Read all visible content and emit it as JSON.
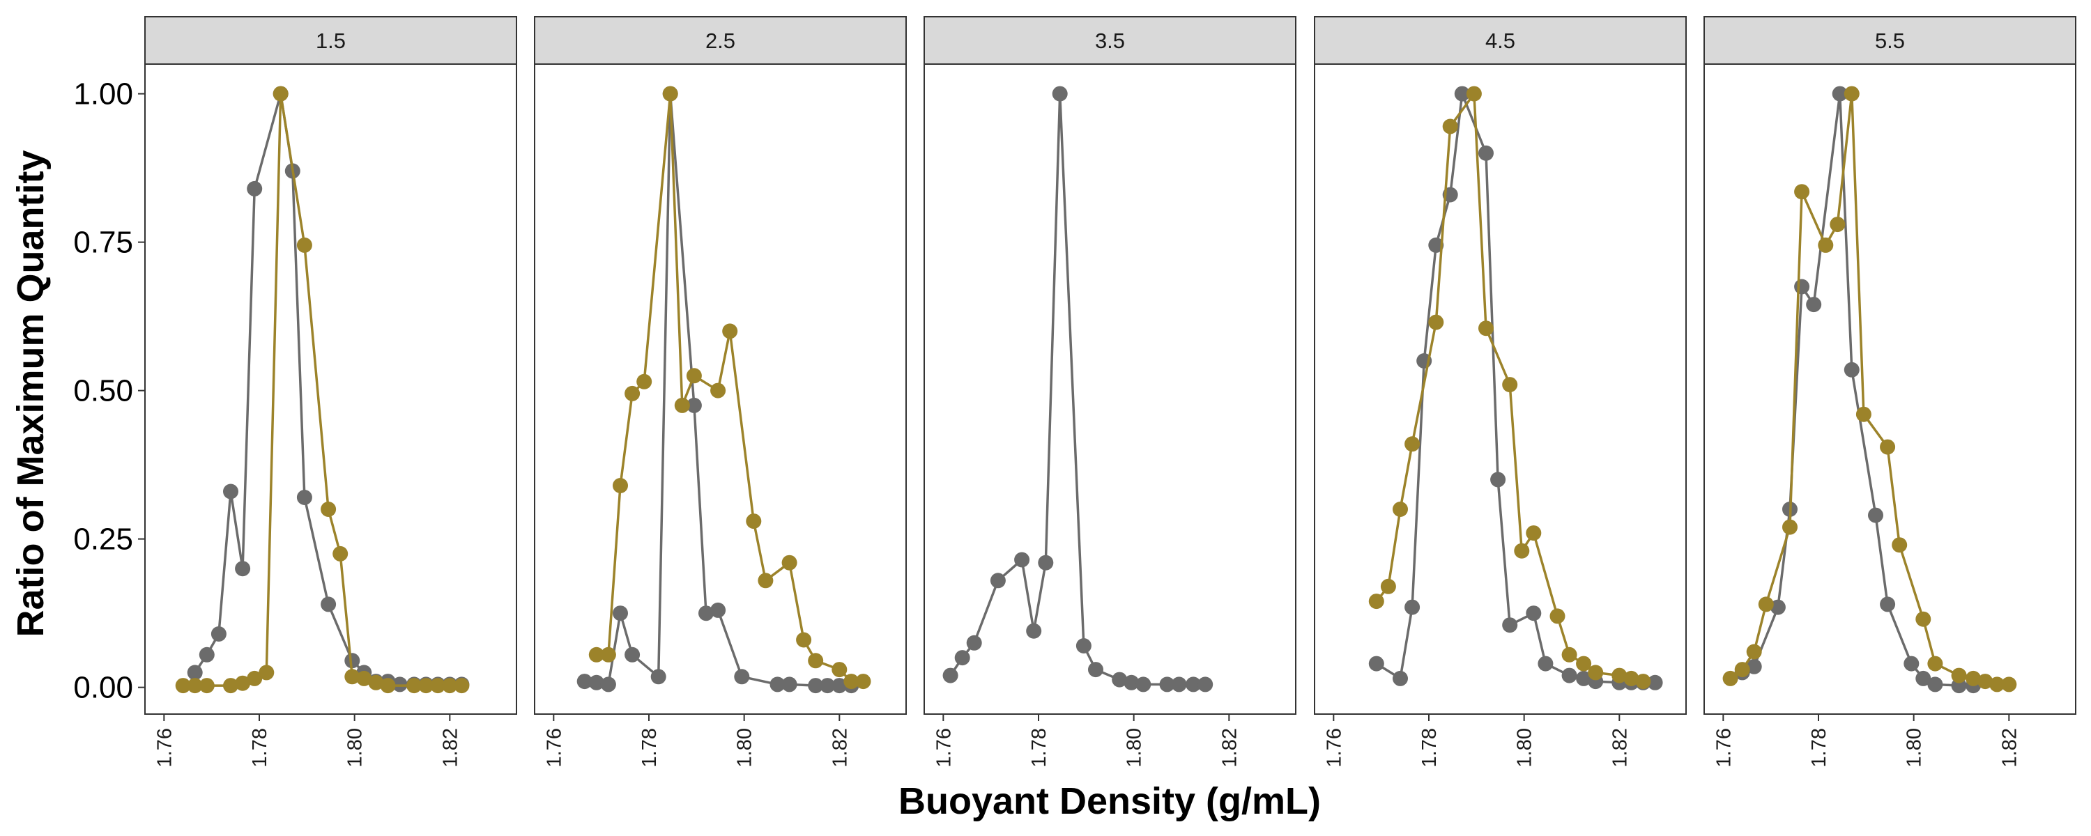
{
  "chart_data": {
    "type": "line",
    "title": "",
    "xlabel": "Buoyant Density (g/mL)",
    "ylabel": "Ratio of Maximum Quantity",
    "xlim": [
      1.756,
      1.834
    ],
    "ylim": [
      -0.045,
      1.05
    ],
    "x_ticks": [
      1.76,
      1.78,
      1.8,
      1.82
    ],
    "x_tick_labels": [
      "1.76",
      "1.78",
      "1.80",
      "1.82"
    ],
    "y_ticks": [
      0,
      0.25,
      0.5,
      0.75,
      1.0
    ],
    "y_tick_labels": [
      "0.00",
      "0.25",
      "0.50",
      "0.75",
      "1.00"
    ],
    "grid": false,
    "legend": "none",
    "series_colors": {
      "gray": "#6b6b6b",
      "gold": "#9c832a"
    },
    "panels": [
      {
        "label": "1.5",
        "series": [
          {
            "color": "gray",
            "points": [
              [
                1.7665,
                0.025
              ],
              [
                1.769,
                0.055
              ],
              [
                1.7715,
                0.09
              ],
              [
                1.774,
                0.33
              ],
              [
                1.7765,
                0.2
              ],
              [
                1.779,
                0.84
              ],
              [
                1.7845,
                1.0
              ],
              [
                1.787,
                0.87
              ],
              [
                1.7895,
                0.32
              ],
              [
                1.7945,
                0.14
              ],
              [
                1.7995,
                0.045
              ],
              [
                1.802,
                0.025
              ],
              [
                1.8045,
                0.01
              ],
              [
                1.807,
                0.01
              ],
              [
                1.8095,
                0.005
              ],
              [
                1.8125,
                0.005
              ],
              [
                1.815,
                0.005
              ],
              [
                1.8175,
                0.005
              ],
              [
                1.82,
                0.005
              ],
              [
                1.8225,
                0.005
              ]
            ]
          },
          {
            "color": "gold",
            "points": [
              [
                1.764,
                0.003
              ],
              [
                1.7665,
                0.003
              ],
              [
                1.769,
                0.003
              ],
              [
                1.774,
                0.003
              ],
              [
                1.7765,
                0.007
              ],
              [
                1.779,
                0.015
              ],
              [
                1.7815,
                0.025
              ],
              [
                1.7845,
                1.0
              ],
              [
                1.7895,
                0.745
              ],
              [
                1.7945,
                0.3
              ],
              [
                1.797,
                0.225
              ],
              [
                1.7995,
                0.018
              ],
              [
                1.802,
                0.015
              ],
              [
                1.8045,
                0.008
              ],
              [
                1.807,
                0.003
              ],
              [
                1.8125,
                0.003
              ],
              [
                1.815,
                0.003
              ],
              [
                1.8175,
                0.003
              ],
              [
                1.82,
                0.003
              ],
              [
                1.8225,
                0.003
              ]
            ]
          }
        ]
      },
      {
        "label": "2.5",
        "series": [
          {
            "color": "gray",
            "points": [
              [
                1.7665,
                0.01
              ],
              [
                1.769,
                0.008
              ],
              [
                1.7715,
                0.005
              ],
              [
                1.774,
                0.125
              ],
              [
                1.7765,
                0.055
              ],
              [
                1.782,
                0.018
              ],
              [
                1.7845,
                1.0
              ],
              [
                1.7895,
                0.475
              ],
              [
                1.792,
                0.125
              ],
              [
                1.7945,
                0.13
              ],
              [
                1.7995,
                0.018
              ],
              [
                1.807,
                0.005
              ],
              [
                1.8095,
                0.005
              ],
              [
                1.815,
                0.003
              ],
              [
                1.8175,
                0.003
              ],
              [
                1.82,
                0.003
              ],
              [
                1.8225,
                0.003
              ]
            ]
          },
          {
            "color": "gold",
            "points": [
              [
                1.769,
                0.055
              ],
              [
                1.7715,
                0.055
              ],
              [
                1.774,
                0.34
              ],
              [
                1.7765,
                0.495
              ],
              [
                1.779,
                0.515
              ],
              [
                1.7845,
                1.0
              ],
              [
                1.787,
                0.475
              ],
              [
                1.7895,
                0.525
              ],
              [
                1.7945,
                0.5
              ],
              [
                1.797,
                0.6
              ],
              [
                1.802,
                0.28
              ],
              [
                1.8045,
                0.18
              ],
              [
                1.8095,
                0.21
              ],
              [
                1.8125,
                0.08
              ],
              [
                1.815,
                0.045
              ],
              [
                1.82,
                0.03
              ],
              [
                1.8225,
                0.01
              ],
              [
                1.825,
                0.01
              ]
            ]
          }
        ]
      },
      {
        "label": "3.5",
        "series": [
          {
            "color": "gray",
            "points": [
              [
                1.7615,
                0.02
              ],
              [
                1.764,
                0.05
              ],
              [
                1.7665,
                0.075
              ],
              [
                1.7715,
                0.18
              ],
              [
                1.7765,
                0.215
              ],
              [
                1.779,
                0.095
              ],
              [
                1.7815,
                0.21
              ],
              [
                1.7845,
                1.0
              ],
              [
                1.7895,
                0.07
              ],
              [
                1.792,
                0.03
              ],
              [
                1.797,
                0.013
              ],
              [
                1.7995,
                0.008
              ],
              [
                1.802,
                0.005
              ],
              [
                1.807,
                0.005
              ],
              [
                1.8095,
                0.005
              ],
              [
                1.8125,
                0.005
              ],
              [
                1.815,
                0.005
              ]
            ]
          }
        ]
      },
      {
        "label": "4.5",
        "series": [
          {
            "color": "gray",
            "points": [
              [
                1.769,
                0.04
              ],
              [
                1.774,
                0.015
              ],
              [
                1.7765,
                0.135
              ],
              [
                1.779,
                0.55
              ],
              [
                1.7815,
                0.745
              ],
              [
                1.7845,
                0.83
              ],
              [
                1.787,
                1.0
              ],
              [
                1.792,
                0.9
              ],
              [
                1.7945,
                0.35
              ],
              [
                1.797,
                0.105
              ],
              [
                1.802,
                0.125
              ],
              [
                1.8045,
                0.04
              ],
              [
                1.8095,
                0.02
              ],
              [
                1.8125,
                0.015
              ],
              [
                1.815,
                0.01
              ],
              [
                1.82,
                0.008
              ],
              [
                1.8225,
                0.008
              ],
              [
                1.825,
                0.008
              ],
              [
                1.8275,
                0.008
              ]
            ]
          },
          {
            "color": "gold",
            "points": [
              [
                1.769,
                0.145
              ],
              [
                1.7715,
                0.17
              ],
              [
                1.774,
                0.3
              ],
              [
                1.7765,
                0.41
              ],
              [
                1.7815,
                0.615
              ],
              [
                1.7845,
                0.945
              ],
              [
                1.7895,
                1.0
              ],
              [
                1.792,
                0.605
              ],
              [
                1.797,
                0.51
              ],
              [
                1.7995,
                0.23
              ],
              [
                1.802,
                0.26
              ],
              [
                1.807,
                0.12
              ],
              [
                1.8095,
                0.055
              ],
              [
                1.8125,
                0.04
              ],
              [
                1.815,
                0.025
              ],
              [
                1.82,
                0.02
              ],
              [
                1.8225,
                0.015
              ],
              [
                1.825,
                0.01
              ]
            ]
          }
        ]
      },
      {
        "label": "5.5",
        "series": [
          {
            "color": "gray",
            "points": [
              [
                1.764,
                0.025
              ],
              [
                1.7665,
                0.035
              ],
              [
                1.7715,
                0.135
              ],
              [
                1.774,
                0.3
              ],
              [
                1.7765,
                0.675
              ],
              [
                1.779,
                0.645
              ],
              [
                1.7845,
                1.0
              ],
              [
                1.787,
                0.535
              ],
              [
                1.792,
                0.29
              ],
              [
                1.7945,
                0.14
              ],
              [
                1.7995,
                0.04
              ],
              [
                1.802,
                0.015
              ],
              [
                1.8045,
                0.005
              ],
              [
                1.8095,
                0.003
              ],
              [
                1.8125,
                0.003
              ]
            ]
          },
          {
            "color": "gold",
            "points": [
              [
                1.7615,
                0.015
              ],
              [
                1.764,
                0.03
              ],
              [
                1.7665,
                0.06
              ],
              [
                1.769,
                0.14
              ],
              [
                1.774,
                0.27
              ],
              [
                1.7765,
                0.835
              ],
              [
                1.7815,
                0.745
              ],
              [
                1.784,
                0.78
              ],
              [
                1.787,
                1.0
              ],
              [
                1.7895,
                0.46
              ],
              [
                1.7945,
                0.405
              ],
              [
                1.797,
                0.24
              ],
              [
                1.802,
                0.115
              ],
              [
                1.8045,
                0.04
              ],
              [
                1.8095,
                0.02
              ],
              [
                1.8125,
                0.015
              ],
              [
                1.815,
                0.01
              ],
              [
                1.8175,
                0.005
              ],
              [
                1.82,
                0.005
              ]
            ]
          }
        ]
      }
    ]
  }
}
